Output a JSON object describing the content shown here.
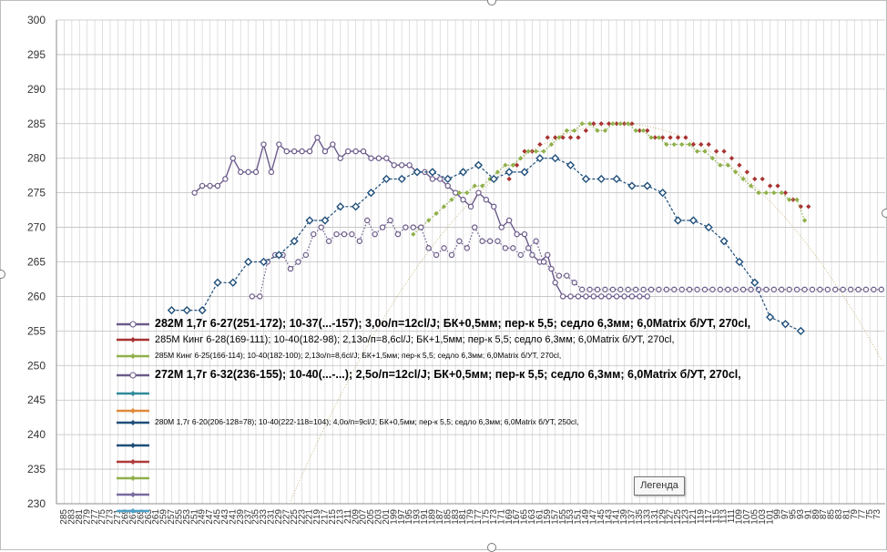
{
  "chart_data": {
    "type": "line",
    "x_reversed": true,
    "xlim": [
      287,
      71
    ],
    "ylim": [
      230,
      300
    ],
    "y_ticks": [
      230,
      235,
      240,
      245,
      250,
      255,
      260,
      265,
      270,
      275,
      280,
      285,
      290,
      295,
      300
    ],
    "x_ticks": [
      285,
      283,
      281,
      279,
      277,
      275,
      273,
      271,
      269,
      267,
      265,
      263,
      261,
      259,
      257,
      255,
      253,
      251,
      249,
      247,
      245,
      243,
      241,
      239,
      237,
      235,
      233,
      231,
      229,
      227,
      225,
      223,
      221,
      219,
      217,
      215,
      213,
      211,
      209,
      207,
      205,
      203,
      201,
      199,
      197,
      195,
      193,
      191,
      189,
      187,
      185,
      183,
      181,
      179,
      177,
      175,
      173,
      171,
      169,
      167,
      165,
      163,
      161,
      159,
      157,
      155,
      153,
      151,
      149,
      147,
      145,
      143,
      141,
      139,
      137,
      135,
      133,
      131,
      129,
      127,
      125,
      123,
      121,
      119,
      117,
      115,
      113,
      111,
      109,
      107,
      105,
      103,
      101,
      99,
      97,
      95,
      93,
      91,
      89,
      87,
      85,
      83,
      81,
      79,
      77,
      75,
      73
    ],
    "gridlines": "vertical",
    "series": [
      {
        "name": "282М 1,7г  6-27(251-172); 10-37(...-157);  3,0о/п=12cl/J; БК+0,5мм; пер-к 5,5; седло 6,3мм; 6,0Matrix б/УТ, 270cl,",
        "color": "#6b5a8a",
        "marker": "circle",
        "line": "solid",
        "x": [
          251,
          249,
          247,
          245,
          243,
          241,
          239,
          237,
          235,
          233,
          231,
          229,
          227,
          225,
          223,
          221,
          219,
          217,
          215,
          213,
          211,
          209,
          207,
          205,
          203,
          201,
          199,
          197,
          195,
          193,
          191,
          189,
          187,
          185,
          183,
          181,
          179,
          177,
          175,
          173,
          171,
          169,
          167,
          165,
          163,
          161,
          159,
          157,
          155,
          153,
          151,
          149,
          147,
          145,
          143,
          141,
          139,
          137,
          135,
          133
        ],
        "y": [
          275,
          276,
          276,
          276,
          277,
          280,
          278,
          278,
          278,
          282,
          278,
          282,
          281,
          281,
          281,
          281,
          283,
          281,
          282,
          280,
          281,
          281,
          281,
          280,
          280,
          280,
          279,
          279,
          279,
          278,
          278,
          277,
          277,
          276,
          275,
          274,
          273,
          275,
          274,
          273,
          270,
          271,
          269,
          269,
          266,
          265,
          266,
          262,
          260,
          260,
          260,
          260,
          260,
          260,
          260,
          260,
          260,
          260,
          260,
          260
        ]
      },
      {
        "name": "285М Кинг  6-28(169-111); 10-40(182-98);  2,13о/п=8,6cl/J; БК+1,5мм; пер-к 5,5; седло 6,3мм; 6,0Matrix б/УТ, 270cl,",
        "color": "#a83232",
        "marker": "diamond-small",
        "line": "none",
        "x": [
          169,
          167,
          165,
          163,
          161,
          159,
          157,
          155,
          153,
          151,
          149,
          147,
          145,
          143,
          141,
          139,
          137,
          135,
          133,
          131,
          129,
          127,
          125,
          123,
          121,
          119,
          117,
          115,
          113,
          111,
          109,
          107,
          105,
          103,
          101,
          99,
          97,
          95,
          93,
          91
        ],
        "y": [
          277,
          279,
          281,
          281,
          282,
          283,
          283,
          283,
          283,
          283,
          284,
          285,
          285,
          285,
          285,
          285,
          285,
          284,
          284,
          283,
          283,
          283,
          283,
          283,
          282,
          282,
          282,
          281,
          281,
          280,
          279,
          278,
          277,
          277,
          276,
          276,
          275,
          274,
          273,
          273
        ]
      },
      {
        "name": "285М Кинг  6-25(166-114); 10-40(182-100);  2,13о/п=8,6cl/J; БК+1,5мм; пер-к 5,5; седло 6,3мм; 6,0Matrix б/УТ, 270cl,",
        "color": "#8fb04a",
        "marker": "diamond-small",
        "line": "dotted",
        "x": [
          194,
          192,
          190,
          188,
          186,
          184,
          182,
          180,
          178,
          176,
          174,
          172,
          170,
          168,
          166,
          164,
          162,
          160,
          158,
          156,
          154,
          152,
          150,
          148,
          146,
          144,
          142,
          140,
          138,
          136,
          134,
          132,
          130,
          128,
          126,
          124,
          122,
          120,
          118,
          116,
          114,
          112,
          110,
          108,
          106,
          104,
          102,
          100,
          98,
          96,
          94,
          92
        ],
        "y": [
          269,
          270,
          271,
          272,
          273,
          274,
          275,
          275,
          276,
          276,
          277,
          278,
          279,
          279,
          280,
          281,
          281,
          281,
          282,
          283,
          284,
          284,
          285,
          285,
          284,
          284,
          285,
          285,
          285,
          284,
          284,
          283,
          283,
          282,
          282,
          282,
          282,
          281,
          281,
          280,
          279,
          279,
          278,
          277,
          276,
          275,
          275,
          275,
          275,
          274,
          274,
          271
        ]
      },
      {
        "name": "272М 1,7г  6-32(236-155); 10-40(...-...);  2,5о/п=12cl/J; БК+0,5мм; пер-к 5,5; седло 6,3мм; 6,0Matrix б/УТ, 270cl,",
        "color": "#6b5a8a",
        "marker": "circle",
        "line": "dotted",
        "x": [
          236,
          234,
          232,
          230,
          228,
          226,
          224,
          222,
          220,
          218,
          216,
          214,
          212,
          210,
          208,
          206,
          204,
          202,
          200,
          198,
          196,
          194,
          192,
          190,
          188,
          186,
          184,
          182,
          180,
          178,
          176,
          174,
          172,
          170,
          168,
          166,
          164,
          162,
          160,
          158,
          156,
          154,
          152,
          150,
          148,
          146,
          144,
          142,
          140,
          138,
          136,
          134,
          132,
          130,
          128,
          126,
          124,
          122,
          120,
          118,
          116,
          114,
          112,
          110,
          108,
          106,
          104,
          102,
          100,
          98,
          96,
          94,
          92,
          90,
          88,
          86,
          84,
          82,
          80,
          78,
          76,
          74,
          72
        ],
        "y": [
          260,
          260,
          265,
          266,
          266,
          264,
          265,
          266,
          269,
          270,
          268,
          269,
          269,
          269,
          268,
          271,
          269,
          270,
          271,
          269,
          270,
          270,
          270,
          267,
          266,
          267,
          266,
          268,
          267,
          270,
          268,
          268,
          268,
          267,
          267,
          266,
          267,
          268,
          265,
          264,
          263,
          263,
          262,
          261,
          261,
          261,
          261,
          261,
          261,
          261,
          261,
          261,
          261,
          261,
          261,
          261,
          261,
          261,
          261,
          261,
          261,
          261,
          261,
          261,
          261,
          261,
          261,
          261,
          261,
          261,
          261,
          261,
          261,
          261,
          261,
          261,
          261,
          261,
          261,
          261,
          261,
          261,
          261
        ]
      },
      {
        "name": "280М 1,7г  6-20(206-128=78); 10-40(222-118=104);  4,0о/п=9cl/J; БК+0,5мм; пер-к 5,5; седло 6,3мм; 6,0Matrix б/УТ, 250cl,",
        "color": "#1f4e79",
        "marker": "diamond",
        "line": "dashed",
        "x": [
          257,
          253,
          249,
          245,
          241,
          237,
          233,
          229,
          225,
          221,
          217,
          213,
          209,
          205,
          201,
          197,
          193,
          189,
          185,
          181,
          177,
          173,
          169,
          165,
          161,
          157,
          153,
          149,
          145,
          141,
          137,
          133,
          129,
          125,
          121,
          117,
          113,
          109,
          105,
          101,
          97,
          93
        ],
        "y": [
          258,
          258,
          258,
          262,
          262,
          265,
          265,
          266,
          268,
          271,
          271,
          273,
          273,
          275,
          277,
          277,
          278,
          278,
          277,
          278,
          279,
          277,
          278,
          278,
          280,
          280,
          279,
          277,
          277,
          277,
          276,
          276,
          275,
          271,
          271,
          270,
          268,
          265,
          262,
          257,
          256,
          255
        ]
      }
    ],
    "legend_labels": [
      "282М 1,7г  6-27(251-172); 10-37(...-157);  3,0о/п=12cl/J; БК+0,5мм; пер-к 5,5; седло 6,3мм; 6,0Matrix б/УТ, 270cl,",
      "285М Кинг  6-28(169-111); 10-40(182-98);  2,13о/п=8,6cl/J; БК+1,5мм; пер-к 5,5; седло 6,3мм; 6,0Matrix б/УТ, 270cl,",
      "285М Кинг  6-25(166-114); 10-40(182-100);  2,13о/п=8,6cl/J; БК+1,5мм; пер-к 5,5; седло 6,3мм; 6,0Matrix б/УТ, 270cl,",
      "272М 1,7г  6-32(236-155); 10-40(...-...);  2,5о/п=12cl/J; БК+0,5мм; пер-к 5,5; седло 6,3мм; 6,0Matrix б/УТ, 270cl,",
      "280М 1,7г  6-20(206-128=78); 10-40(222-118=104);  4,0о/п=9cl/J; БК+0,5мм; пер-к 5,5; седло 6,3мм; 6,0Matrix б/УТ, 250cl,"
    ],
    "legend_placement": "bottom-left",
    "extra_legend_swatches": [
      "#2e8b9a",
      "#e08a3a",
      "#1f4e79",
      "#b03a3a",
      "#8fb04a",
      "#7a6aa0",
      "#4aa0c8",
      "#e08a3a"
    ]
  },
  "ui": {
    "tooltip_text": "Легенда"
  }
}
